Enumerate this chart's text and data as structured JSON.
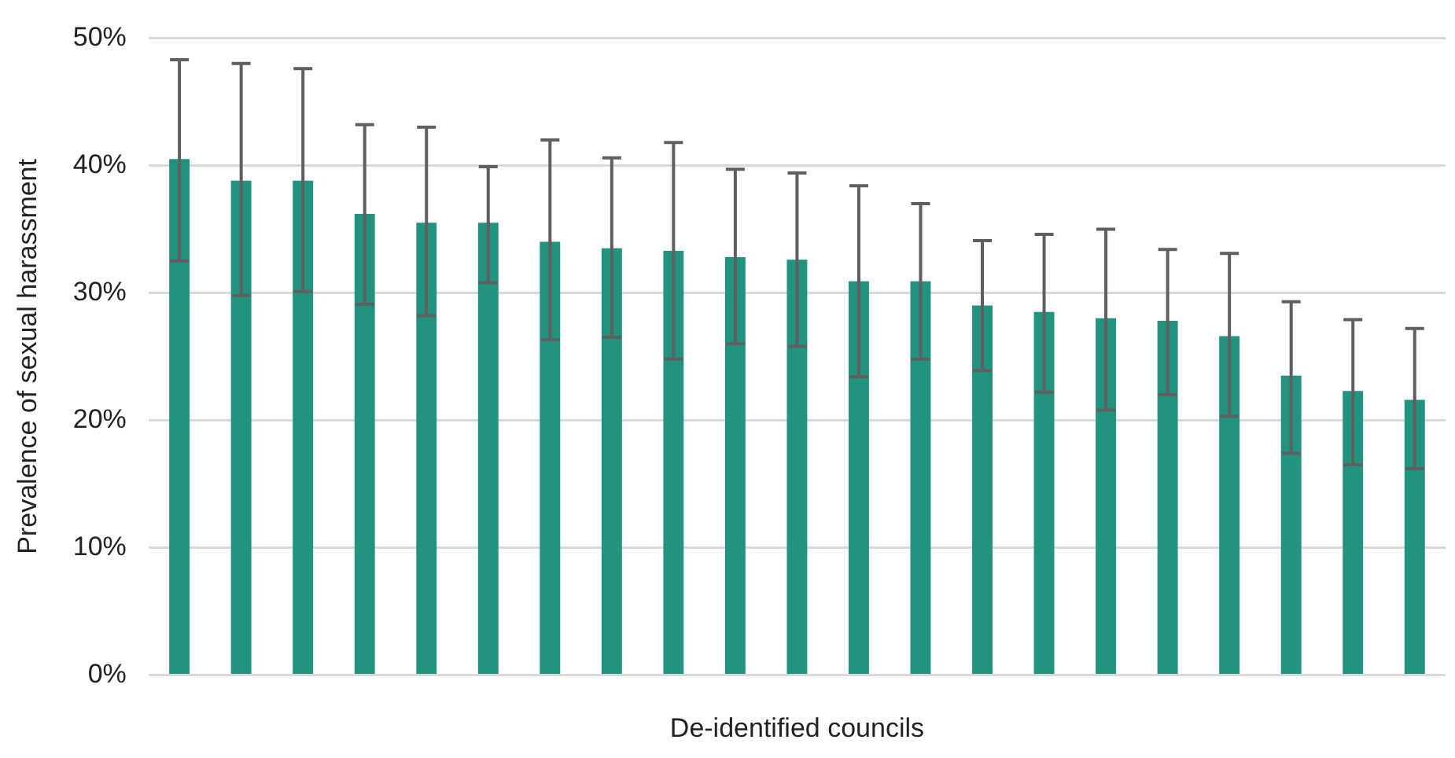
{
  "chart_data": {
    "type": "bar",
    "xlabel": "De-identified councils",
    "ylabel": "Prevalence of sexual harassment",
    "categories": [
      null,
      null,
      null,
      null,
      null,
      null,
      null,
      null,
      null,
      null,
      null,
      null,
      null,
      null,
      null,
      null,
      null,
      null,
      null,
      null,
      null
    ],
    "values": [
      40.5,
      38.8,
      38.8,
      36.2,
      35.5,
      35.5,
      34.0,
      33.5,
      33.3,
      32.8,
      32.6,
      30.9,
      30.9,
      29.0,
      28.5,
      28.0,
      27.8,
      26.6,
      23.5,
      22.3,
      21.6
    ],
    "errors": [
      [
        32.5,
        48.3
      ],
      [
        29.8,
        48.0
      ],
      [
        30.1,
        47.6
      ],
      [
        29.1,
        43.2
      ],
      [
        28.2,
        43.0
      ],
      [
        30.8,
        39.9
      ],
      [
        26.3,
        42.0
      ],
      [
        26.5,
        40.6
      ],
      [
        24.8,
        41.8
      ],
      [
        26.0,
        39.7
      ],
      [
        25.8,
        39.4
      ],
      [
        23.4,
        38.4
      ],
      [
        24.8,
        37.0
      ],
      [
        23.9,
        34.1
      ],
      [
        22.2,
        34.6
      ],
      [
        20.8,
        35.0
      ],
      [
        22.0,
        33.4
      ],
      [
        20.3,
        33.1
      ],
      [
        17.4,
        29.3
      ],
      [
        16.5,
        27.9
      ],
      [
        16.2,
        27.2
      ]
    ],
    "color": "#22937f",
    "ylim": [
      0,
      50
    ],
    "yticks": [
      {
        "value": 0,
        "label": "0%"
      },
      {
        "value": 10,
        "label": "10%"
      },
      {
        "value": 20,
        "label": "20%"
      },
      {
        "value": 30,
        "label": "30%"
      },
      {
        "value": 40,
        "label": "40%"
      },
      {
        "value": 50,
        "label": "50%"
      }
    ],
    "grid": "y",
    "legend": false
  }
}
